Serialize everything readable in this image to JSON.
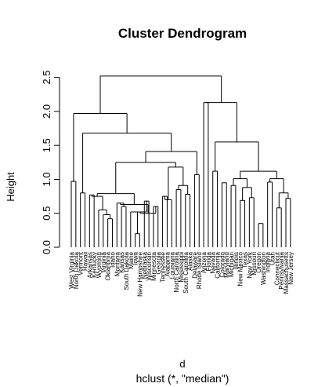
{
  "chart_data": {
    "type": "dendrogram",
    "title": "Cluster Dendrogram",
    "ylabel": "Height",
    "xlabel": "d",
    "subtitle": "hclust (*, \"median\")",
    "ylim": [
      0,
      2.6
    ],
    "yticks": [
      "0.0",
      "0.5",
      "1.0",
      "1.5",
      "2.0",
      "2.5"
    ],
    "ytick_values": [
      0,
      0.5,
      1.0,
      1.5,
      2.0,
      2.5
    ],
    "leaves": [
      "West Virginia",
      "North Dakota",
      "Vermont",
      "Hawaii",
      "Arkansas",
      "Kentucky",
      "Wyoming",
      "Virginia",
      "Oklahoma",
      "Idaho",
      "Montana",
      "Kansas",
      "South Dakota",
      "Maine",
      "Iowa",
      "New Hampshire",
      "Nebraska",
      "Wisconsin",
      "Minnesota",
      "Georgia",
      "Tennessee",
      "Alabama",
      "Louisiana",
      "North Carolina",
      "Mississippi",
      "South Carolina",
      "Alaska",
      "Delaware",
      "Rhode Island",
      "Arizona",
      "Florida",
      "Nevada",
      "California",
      "Colorado",
      "Maryland",
      "Michigan",
      "Illinois",
      "New Mexico",
      "Texas",
      "New York",
      "Missouri",
      "Oregon",
      "Washington",
      "Indiana",
      "Utah",
      "Connecticut",
      "Pennsylvania",
      "Massachusetts",
      "New Jersey"
    ],
    "merges": [
      {
        "a": 0,
        "b": 1,
        "h": 0.97
      },
      {
        "a": 8,
        "b": 9,
        "h": 0.42
      },
      {
        "a": 7,
        "b": 8.5,
        "h": 0.48
      },
      {
        "a": 6,
        "b": 7.75,
        "h": 0.55
      },
      {
        "a": 4,
        "b": 5,
        "h": 0.77
      },
      {
        "a": 4.5,
        "b": 6.875,
        "h": 0.75
      },
      {
        "a": 11,
        "b": 12,
        "h": 0.6
      },
      {
        "a": 10,
        "b": 11.5,
        "h": 0.65
      },
      {
        "a": 14,
        "b": 15,
        "h": 0.2
      },
      {
        "a": 13,
        "b": 14.5,
        "h": 0.52
      },
      {
        "a": 16,
        "b": 17,
        "h": 0.68
      },
      {
        "a": 13.75,
        "b": 16.5,
        "h": 0.52
      },
      {
        "a": 18,
        "b": 19,
        "h": 0.6
      },
      {
        "a": 15.125,
        "b": 18.5,
        "h": 0.5
      },
      {
        "a": 10.75,
        "b": 16.8125,
        "h": 0.63
      },
      {
        "a": 5.6875,
        "b": 13.78125,
        "h": 0.79
      },
      {
        "a": 20,
        "b": 21,
        "h": 0.75
      },
      {
        "a": 20.5,
        "b": 22,
        "h": 0.7
      },
      {
        "a": 23,
        "b": 24,
        "h": 0.85
      },
      {
        "a": 25,
        "b": 26,
        "h": 0.78
      },
      {
        "a": 23.5,
        "b": 25.5,
        "h": 0.91
      },
      {
        "a": 21.25,
        "b": 24.5,
        "h": 1.18
      },
      {
        "a": 9.734375,
        "b": 22.875,
        "h": 1.25
      },
      {
        "a": 27,
        "b": 28,
        "h": 1.07
      },
      {
        "a": 16.3046875,
        "b": 27.5,
        "h": 1.41
      },
      {
        "a": 2,
        "b": 3,
        "h": 0.8
      },
      {
        "a": 2.5,
        "b": 21.90234375,
        "h": 1.68
      },
      {
        "a": 0.5,
        "b": 12.201171875,
        "h": 1.97
      },
      {
        "a": 29,
        "b": 30,
        "h": 2.13
      },
      {
        "a": 31,
        "b": 32,
        "h": 1.12
      },
      {
        "a": 33,
        "b": 34,
        "h": 0.95
      },
      {
        "a": 35,
        "b": 36,
        "h": 0.91
      },
      {
        "a": 37,
        "b": 38,
        "h": 0.69
      },
      {
        "a": 39,
        "b": 40,
        "h": 0.73
      },
      {
        "a": 37.5,
        "b": 39.5,
        "h": 0.88
      },
      {
        "a": 35.5,
        "b": 38.5,
        "h": 1.01
      },
      {
        "a": 41,
        "b": 42,
        "h": 0.35
      },
      {
        "a": 43,
        "b": 44,
        "h": 0.96
      },
      {
        "a": 45,
        "b": 46,
        "h": 0.58
      },
      {
        "a": 47,
        "b": 48,
        "h": 0.72
      },
      {
        "a": 45.5,
        "b": 47.5,
        "h": 0.8
      },
      {
        "a": 43.5,
        "b": 46.5,
        "h": 1.01
      },
      {
        "a": 37.0,
        "b": 45.0,
        "h": 1.12
      },
      {
        "a": 31.5,
        "b": 41.0,
        "h": 1.55
      },
      {
        "a": 29.5,
        "b": 36.25,
        "h": 2.13
      },
      {
        "a": 6.3505859375,
        "b": 32.875,
        "h": 2.52
      }
    ]
  }
}
